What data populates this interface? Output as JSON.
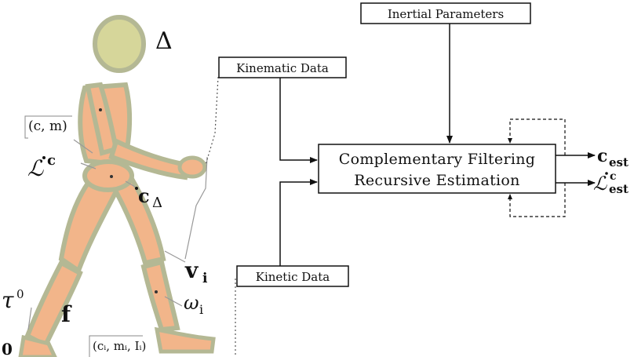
{
  "blocks": {
    "inertial_parameters": "Inertial Parameters",
    "kinematic_data": "Kinematic Data",
    "kinetic_data": "Kinetic Data",
    "estimator_line1": "Complementary Filtering",
    "estimator_line2": "Recursive Estimation"
  },
  "outputs": {
    "c_est_base": "c",
    "c_est_sub": "est",
    "L_est_base": "ℒ",
    "L_est_sup": "c",
    "L_est_sub": "est"
  },
  "figure_labels": {
    "delta": "Δ",
    "c_m": "(c, m)",
    "L_c_base": "ℒ",
    "L_c_sup": "c",
    "c_delta_base": "c",
    "c_delta_sub": "Δ",
    "v_i_base": "v",
    "v_i_sub": "i",
    "omega_i_base": "ω",
    "omega_i_sub": "i",
    "tau_base": "τ",
    "tau_sup": "0",
    "f": "f",
    "ci_mi_Ii": "(cᵢ, mᵢ, Iᵢ)",
    "zero": "0"
  },
  "colors": {
    "body_segment": "#f2b58a",
    "body_outline": "#b4b894",
    "head_fill": "#d6d69a",
    "line": "#111111"
  }
}
